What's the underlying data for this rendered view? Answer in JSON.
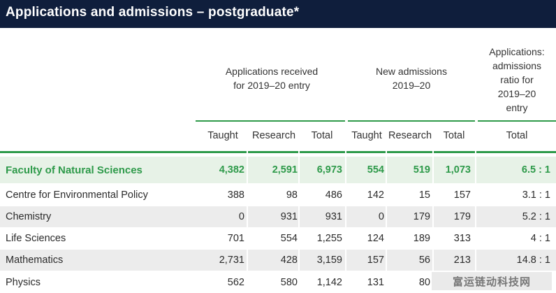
{
  "title": "Applications and admissions – postgraduate*",
  "groups": {
    "applications": [
      "Applications received",
      "for  2019–20 entry"
    ],
    "admissions": [
      "New admissions",
      "2019–20"
    ],
    "ratio": [
      "Applications:",
      "admissions",
      "ratio for",
      "2019–20",
      "entry"
    ]
  },
  "columns": [
    "Taught",
    "Research",
    "Total",
    "Taught",
    "Research",
    "Total",
    "Total"
  ],
  "rows": [
    {
      "label": "Faculty of Natural Sciences",
      "values": [
        "4,382",
        "2,591",
        "6,973",
        "554",
        "519",
        "1,073",
        "6.5 : 1"
      ]
    },
    {
      "label": "Centre for Environmental Policy",
      "values": [
        "388",
        "98",
        "486",
        "142",
        "15",
        "157",
        "3.1 : 1"
      ]
    },
    {
      "label": "Chemistry",
      "values": [
        "0",
        "931",
        "931",
        "0",
        "179",
        "179",
        "5.2 : 1"
      ]
    },
    {
      "label": "Life Sciences",
      "values": [
        "701",
        "554",
        "1,255",
        "124",
        "189",
        "313",
        "4 : 1"
      ]
    },
    {
      "label": "Mathematics",
      "values": [
        "2,731",
        "428",
        "3,159",
        "157",
        "56",
        "213",
        "14.8 : 1"
      ]
    },
    {
      "label": "Physics",
      "values": [
        "562",
        "580",
        "1,142",
        "131",
        "80",
        "",
        ""
      ]
    }
  ],
  "watermark": "富运链动科技网"
}
